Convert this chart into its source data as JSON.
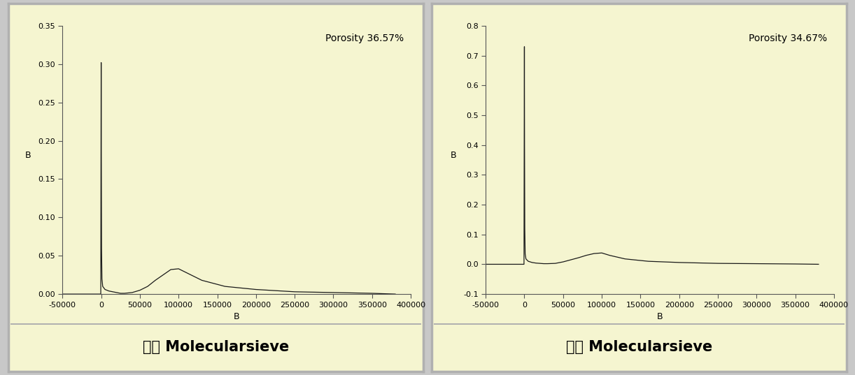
{
  "panel1": {
    "title": "Porosity 36.57%",
    "xlabel": "B",
    "ylabel": "B",
    "caption": "국산 Molecularsieve",
    "xlim": [
      -50000,
      400000
    ],
    "ylim": [
      0.0,
      0.35
    ],
    "yticks": [
      0.0,
      0.05,
      0.1,
      0.15,
      0.2,
      0.25,
      0.3,
      0.35
    ],
    "ytick_labels": [
      "0.00",
      "0.05",
      "0.10",
      "0.15",
      "0.20",
      "0.25",
      "0.30",
      "0.35"
    ],
    "xticks": [
      -50000,
      0,
      50000,
      100000,
      150000,
      200000,
      250000,
      300000,
      350000,
      400000
    ],
    "xtick_labels": [
      "-50000",
      "0",
      "50000",
      "100000",
      "150000",
      "200000",
      "250000",
      "300000",
      "350000",
      "400000"
    ],
    "curve": {
      "x": [
        -50000,
        -5000,
        -500,
        0,
        200,
        500,
        1000,
        2000,
        5000,
        10000,
        15000,
        20000,
        25000,
        30000,
        40000,
        50000,
        60000,
        70000,
        80000,
        90000,
        100000,
        110000,
        130000,
        160000,
        200000,
        250000,
        300000,
        350000,
        380000
      ],
      "y": [
        0.0,
        0.0,
        0.0,
        0.302,
        0.18,
        0.06,
        0.02,
        0.01,
        0.006,
        0.004,
        0.003,
        0.002,
        0.001,
        0.001,
        0.002,
        0.005,
        0.01,
        0.018,
        0.025,
        0.032,
        0.033,
        0.028,
        0.018,
        0.01,
        0.006,
        0.003,
        0.002,
        0.001,
        0.0
      ]
    }
  },
  "panel2": {
    "title": "Porosity 34.67%",
    "xlabel": "B",
    "ylabel": "B",
    "caption": "외산 Molecularsieve",
    "xlim": [
      -50000,
      400000
    ],
    "ylim": [
      -0.1,
      0.8
    ],
    "yticks": [
      -0.1,
      0.0,
      0.1,
      0.2,
      0.3,
      0.4,
      0.5,
      0.6,
      0.7,
      0.8
    ],
    "ytick_labels": [
      "-0.1",
      "0.0",
      "0.1",
      "0.2",
      "0.3",
      "0.4",
      "0.5",
      "0.6",
      "0.7",
      "0.8"
    ],
    "xticks": [
      -50000,
      0,
      50000,
      100000,
      150000,
      200000,
      250000,
      300000,
      350000,
      400000
    ],
    "xtick_labels": [
      "-50000",
      "0",
      "50000",
      "100000",
      "150000",
      "200000",
      "250000",
      "300000",
      "350000",
      "400000"
    ],
    "curve": {
      "x": [
        -50000,
        -5000,
        -500,
        0,
        200,
        500,
        1000,
        2000,
        5000,
        10000,
        15000,
        20000,
        25000,
        30000,
        40000,
        50000,
        60000,
        70000,
        80000,
        90000,
        100000,
        110000,
        130000,
        160000,
        200000,
        250000,
        300000,
        350000,
        380000
      ],
      "y": [
        0.0,
        0.0,
        0.0,
        0.73,
        0.4,
        0.12,
        0.035,
        0.018,
        0.01,
        0.006,
        0.004,
        0.003,
        0.002,
        0.002,
        0.003,
        0.008,
        0.015,
        0.022,
        0.03,
        0.036,
        0.038,
        0.03,
        0.018,
        0.01,
        0.006,
        0.003,
        0.002,
        0.001,
        0.0
      ]
    }
  },
  "panel_bg": "#f5f5d0",
  "caption_bg": "#f5f5d0",
  "outer_bg": "#c8c8c8",
  "line_color": "#1a1a1a",
  "border_color": "#b0b0b0",
  "axis_bg": "#f5f5d0",
  "title_fontsize": 10,
  "axis_label_fontsize": 9,
  "tick_fontsize": 8,
  "caption_fontsize": 15
}
